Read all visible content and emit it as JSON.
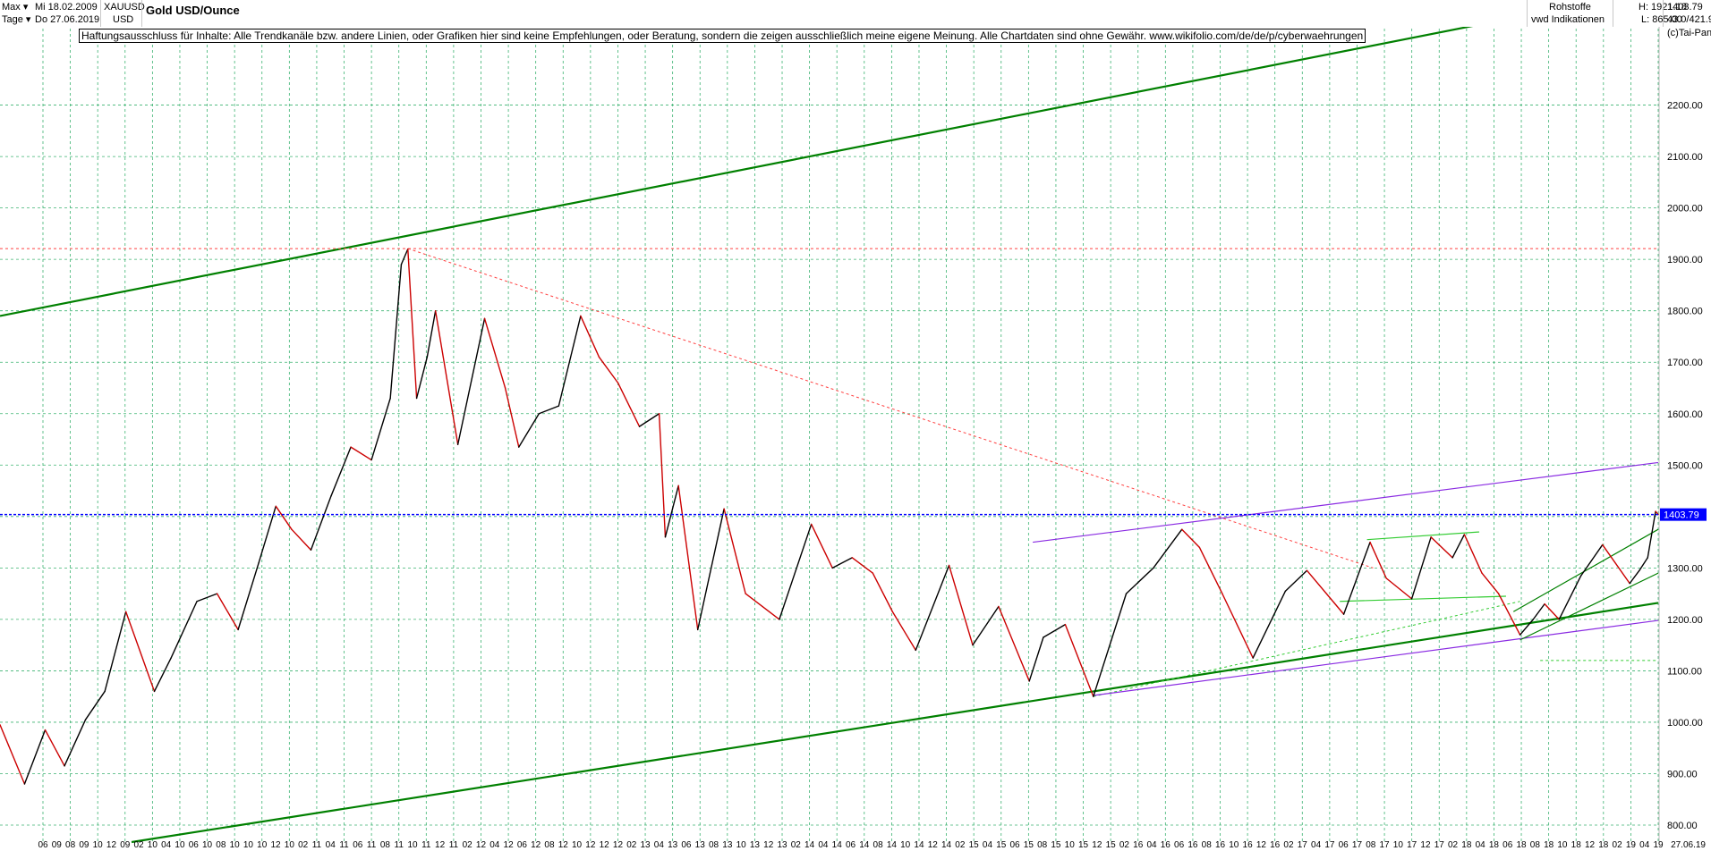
{
  "toolbar": {
    "range": "Max",
    "period": "Tage",
    "date_from": "Mi 18.02.2009",
    "date_to": "Do 27.06.2019",
    "symbol": "XAUUSD",
    "currency": "USD",
    "title": "Gold USD/Ounce",
    "category": "Rohstoffe",
    "provider": "vwd Indikationen",
    "high": "H: 1921.18",
    "low": "L: 865.00",
    "last": "1403.79",
    "info": "43.0/421.9",
    "copyright": "(c)Tai-Pan"
  },
  "disclaimer": "Haftungsausschluss für Inhalte: Alle Trendkanäle bzw. andere Linien, oder Grafiken hier sind keine Empfehlungen, oder Beratung, sondern die zeigen ausschließlich meine eigene Meinung. Alle Chartdaten sind ohne Gewähr.  www.wikifolio.com/de/de/p/cyberwaehrungen",
  "colors": {
    "trend_green": "#008000",
    "light_green": "#33cc33",
    "purple": "#8a2be2",
    "price_line": "#0000ff",
    "resistance": "#ff4040",
    "grid": "#3cb371",
    "candle_up": "#000000",
    "candle_down": "#cc0000"
  },
  "chart_data": {
    "type": "line",
    "title": "Gold USD/Ounce",
    "xlabel": "",
    "ylabel": "",
    "ylim": [
      767,
      2380
    ],
    "x_range": [
      "2009-02-18",
      "2019-06-27"
    ],
    "y_ticks": [
      800,
      900,
      1000,
      1100,
      1200,
      1300,
      1400,
      1500,
      1600,
      1700,
      1800,
      1900,
      2000,
      2100,
      2200
    ],
    "y_tick_labels": [
      "800.00",
      "900.00",
      "1000.00",
      "1100.00",
      "1200.00",
      "1300.00",
      "1400.00",
      "1500.00",
      "1600.00",
      "1700.00",
      "1800.00",
      "1900.00",
      "2000.00",
      "2100.00",
      "2200.00"
    ],
    "x_tick_labels": [
      "06",
      "09",
      "08",
      "09",
      "10",
      "12",
      "09",
      "02",
      "10",
      "04",
      "10",
      "06",
      "10",
      "08",
      "10",
      "10",
      "10",
      "12",
      "10",
      "02",
      "11",
      "04",
      "11",
      "06",
      "11",
      "08",
      "11",
      "10",
      "11",
      "12",
      "11",
      "02",
      "12",
      "04",
      "12",
      "06",
      "12",
      "08",
      "12",
      "10",
      "12",
      "12",
      "12",
      "02",
      "13",
      "04",
      "13",
      "06",
      "13",
      "08",
      "13",
      "10",
      "13",
      "12",
      "13",
      "02",
      "14",
      "04",
      "14",
      "06",
      "14",
      "08",
      "14",
      "10",
      "14",
      "12",
      "14",
      "02",
      "15",
      "04",
      "15",
      "06",
      "15",
      "08",
      "15",
      "10",
      "15",
      "12",
      "15",
      "02",
      "16",
      "04",
      "16",
      "06",
      "16",
      "08",
      "16",
      "10",
      "16",
      "12",
      "16",
      "02",
      "17",
      "04",
      "17",
      "06",
      "17",
      "08",
      "17",
      "10",
      "17",
      "12",
      "17",
      "02",
      "18",
      "04",
      "18",
      "06",
      "18",
      "08",
      "18",
      "10",
      "18",
      "12",
      "18",
      "02",
      "19",
      "04",
      "19"
    ],
    "last_price": 1403.79,
    "last_price_label": "1403.79",
    "end_date_label": "27.06.19",
    "series": [
      {
        "x": [
          "2009-02-18",
          "2009-04-15",
          "2009-06-01",
          "2009-07-15",
          "2009-09-01",
          "2009-10-15",
          "2009-12-02",
          "2010-02-05",
          "2010-03-15",
          "2010-05-13",
          "2010-06-28",
          "2010-08-15",
          "2010-10-01",
          "2010-11-09",
          "2010-12-15",
          "2011-01-28",
          "2011-03-15",
          "2011-04-29",
          "2011-06-15",
          "2011-07-28",
          "2011-08-22",
          "2011-09-06",
          "2011-09-26",
          "2011-10-20",
          "2011-11-08",
          "2011-12-29",
          "2012-02-28",
          "2012-04-15",
          "2012-05-16",
          "2012-07-01",
          "2012-08-15",
          "2012-10-04",
          "2012-11-15",
          "2012-12-28",
          "2013-02-15",
          "2013-04-01",
          "2013-04-15",
          "2013-05-15",
          "2013-06-28",
          "2013-08-27",
          "2013-10-15",
          "2013-12-31",
          "2014-03-14",
          "2014-05-01",
          "2014-06-15",
          "2014-08-01",
          "2014-09-15",
          "2014-11-07",
          "2015-01-22",
          "2015-03-17",
          "2015-05-15",
          "2015-07-24",
          "2015-08-25",
          "2015-10-14",
          "2015-12-17",
          "2016-03-01",
          "2016-05-02",
          "2016-07-06",
          "2016-08-15",
          "2016-10-06",
          "2016-12-15",
          "2017-02-27",
          "2017-04-17",
          "2017-07-10",
          "2017-09-08",
          "2017-10-15",
          "2017-12-12",
          "2018-01-25",
          "2018-03-15",
          "2018-04-11",
          "2018-05-21",
          "2018-06-28",
          "2018-08-16",
          "2018-09-15",
          "2018-10-11",
          "2018-11-13",
          "2019-01-02",
          "2019-02-20",
          "2019-04-23",
          "2019-05-15",
          "2019-06-03",
          "2019-06-21",
          "2019-06-27"
        ],
        "y": [
          995,
          880,
          985,
          915,
          1005,
          1060,
          1215,
          1060,
          1125,
          1235,
          1250,
          1180,
          1310,
          1420,
          1375,
          1335,
          1440,
          1535,
          1510,
          1630,
          1890,
          1920,
          1630,
          1710,
          1800,
          1540,
          1785,
          1650,
          1535,
          1600,
          1615,
          1790,
          1710,
          1660,
          1575,
          1600,
          1360,
          1460,
          1180,
          1415,
          1250,
          1200,
          1385,
          1300,
          1320,
          1290,
          1215,
          1140,
          1305,
          1150,
          1225,
          1080,
          1165,
          1190,
          1050,
          1250,
          1300,
          1375,
          1340,
          1250,
          1125,
          1255,
          1295,
          1210,
          1350,
          1280,
          1240,
          1360,
          1320,
          1365,
          1290,
          1250,
          1170,
          1200,
          1230,
          1200,
          1285,
          1345,
          1270,
          1295,
          1320,
          1410,
          1404
        ]
      }
    ],
    "trendlines": [
      {
        "name": "",
        "style": "solid",
        "color": "#008000",
        "x": [
          "2009-02-18",
          "2019-06-27"
        ],
        "y": [
          1790,
          2425
        ]
      },
      {
        "name": "",
        "style": "solid",
        "color": "#008000",
        "x": [
          "2009-12-15",
          "2019-06-27"
        ],
        "y": [
          767,
          1232
        ]
      },
      {
        "name": "",
        "style": "dashed",
        "color": "#ff4040",
        "x": [
          "2009-02-18",
          "2019-06-27"
        ],
        "y": [
          1921,
          1921
        ]
      },
      {
        "name": "",
        "style": "dashed",
        "color": "#ff4040",
        "x": [
          "2011-09-06",
          "2017-09-15"
        ],
        "y": [
          1921,
          1300
        ]
      },
      {
        "name": "",
        "style": "dashed",
        "color": "#33cc33",
        "x": [
          "2015-12-17",
          "2018-08-16"
        ],
        "y": [
          1050,
          1235
        ]
      },
      {
        "name": "",
        "style": "dashed",
        "color": "#33cc33",
        "x": [
          "2018-10-01",
          "2019-06-27"
        ],
        "y": [
          1120,
          1120
        ]
      },
      {
        "name": "",
        "style": "solid",
        "color": "#8a2be2",
        "x": [
          "2015-08-01",
          "2019-06-27"
        ],
        "y": [
          1350,
          1505
        ]
      },
      {
        "name": "",
        "style": "solid",
        "color": "#8a2be2",
        "x": [
          "2015-12-17",
          "2019-06-27"
        ],
        "y": [
          1052,
          1198
        ]
      },
      {
        "name": "",
        "style": "solid",
        "color": "#33cc33",
        "x": [
          "2017-09-01",
          "2018-05-15"
        ],
        "y": [
          1355,
          1370
        ]
      },
      {
        "name": "",
        "style": "solid",
        "color": "#33cc33",
        "x": [
          "2017-07-01",
          "2018-07-15"
        ],
        "y": [
          1235,
          1245
        ]
      },
      {
        "name": "",
        "style": "solid",
        "color": "#008000",
        "x": [
          "2018-08-01",
          "2019-06-27"
        ],
        "y": [
          1215,
          1375
        ]
      },
      {
        "name": "",
        "style": "solid",
        "color": "#008000",
        "x": [
          "2018-08-16",
          "2019-06-27"
        ],
        "y": [
          1160,
          1290
        ]
      }
    ]
  }
}
